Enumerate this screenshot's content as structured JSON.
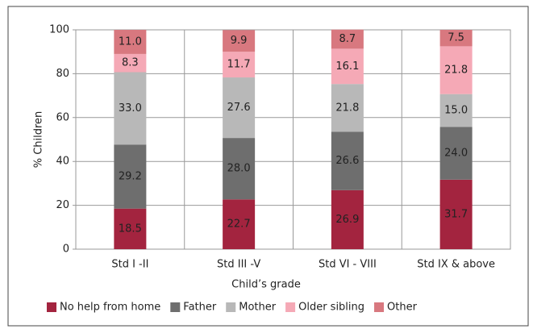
{
  "chart_data": {
    "type": "stacked_bar",
    "x_label": "Child’s grade",
    "y_label": "% Children",
    "categories": [
      "Std I -II",
      "Std III -V",
      "Std VI - VIII",
      "Std IX & above"
    ],
    "series": [
      {
        "name": "No help from home",
        "color": "#a3243f",
        "values": [
          18.5,
          22.7,
          26.9,
          31.7
        ],
        "value_labels": [
          "18.5",
          "22.7",
          "26.9",
          "31.7"
        ]
      },
      {
        "name": "Father",
        "color": "#6e6e6e",
        "values": [
          29.2,
          28.0,
          26.6,
          24.0
        ],
        "value_labels": [
          "29.2",
          "28.0",
          "26.6",
          "24.0"
        ]
      },
      {
        "name": "Mother",
        "color": "#b8b8b8",
        "values": [
          33.0,
          27.6,
          21.8,
          15.0
        ],
        "value_labels": [
          "33.0",
          "27.6",
          "21.8",
          "15.0"
        ]
      },
      {
        "name": "Older sibling",
        "color": "#f5a9b6",
        "values": [
          8.3,
          11.7,
          16.1,
          21.8
        ],
        "value_labels": [
          "8.3",
          "11.7",
          "16.1",
          "21.8"
        ]
      },
      {
        "name": "Other",
        "color": "#d8787f",
        "values": [
          11.0,
          9.9,
          8.7,
          7.5
        ],
        "value_labels": [
          "11.0",
          "9.9",
          "8.7",
          "7.5"
        ]
      }
    ],
    "ylim": [
      0,
      100
    ],
    "yticks": [
      0,
      20,
      40,
      60,
      80,
      100
    ],
    "grid": true,
    "legend": "bottom"
  }
}
